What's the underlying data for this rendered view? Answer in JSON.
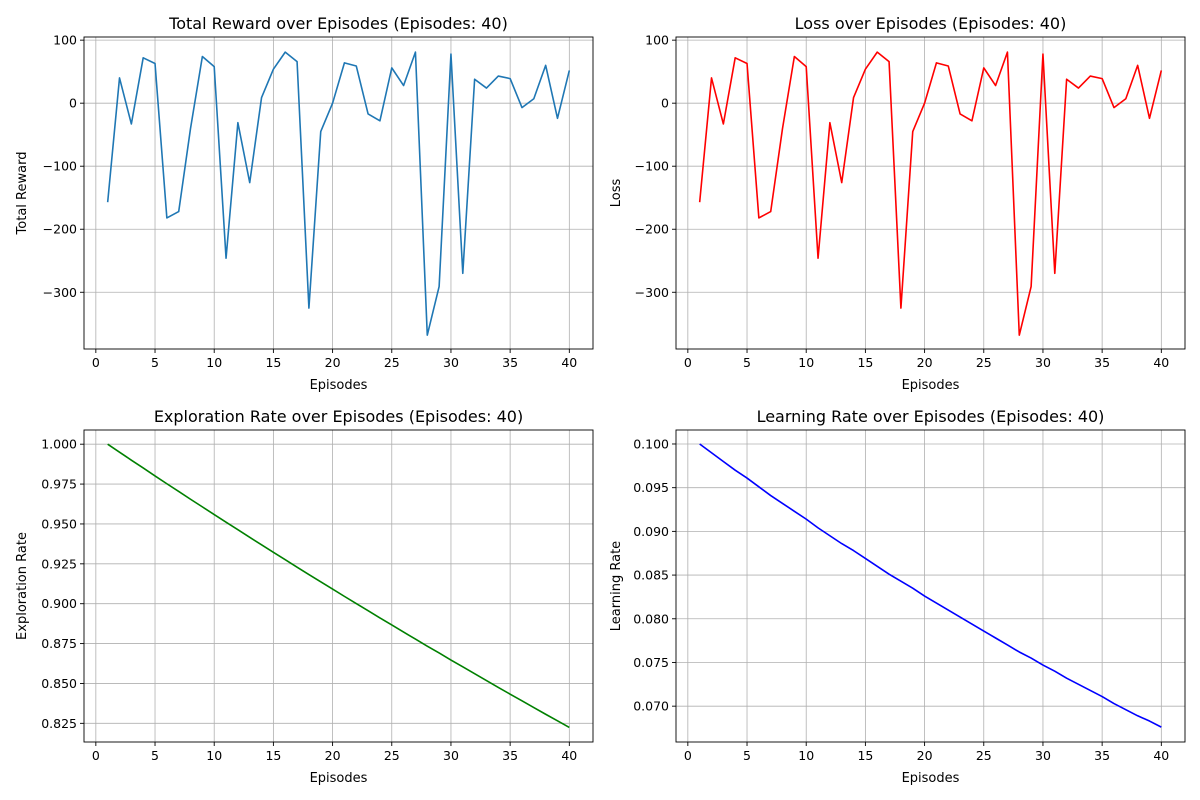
{
  "chart_data": [
    {
      "type": "line",
      "title": "Total Reward over Episodes (Episodes: 40)",
      "xlabel": "Episodes",
      "ylabel": "Total Reward",
      "color": "#1f77b4",
      "grid": true,
      "xlim": [
        -1,
        42
      ],
      "ylim": [
        -390,
        105
      ],
      "xticks": [
        0,
        5,
        10,
        15,
        20,
        25,
        30,
        35,
        40
      ],
      "xtick_labels": [
        "0",
        "5",
        "10",
        "15",
        "20",
        "25",
        "30",
        "35",
        "40"
      ],
      "yticks": [
        -300,
        -200,
        -100,
        0,
        100
      ],
      "ytick_labels": [
        "−300",
        "−200",
        "−100",
        "0",
        "100"
      ],
      "x": [
        1,
        2,
        3,
        4,
        5,
        6,
        7,
        8,
        9,
        10,
        11,
        12,
        13,
        14,
        15,
        16,
        17,
        18,
        19,
        20,
        21,
        22,
        23,
        24,
        25,
        26,
        27,
        28,
        29,
        30,
        31,
        32,
        33,
        34,
        35,
        36,
        37,
        38,
        39,
        40
      ],
      "y": [
        -157,
        40,
        -33,
        72,
        63,
        -182,
        -172,
        -40,
        74,
        58,
        -246,
        -31,
        -126,
        9,
        54,
        81,
        66,
        -325,
        -45,
        0,
        64,
        59,
        -17,
        -28,
        56,
        28,
        81,
        -368,
        -291,
        78,
        -270,
        38,
        24,
        43,
        39,
        -7,
        7,
        60,
        -24,
        52
      ]
    },
    {
      "type": "line",
      "title": "Loss over Episodes (Episodes: 40)",
      "xlabel": "Episodes",
      "ylabel": "Loss",
      "color": "#ff0000",
      "grid": true,
      "xlim": [
        -1,
        42
      ],
      "ylim": [
        -390,
        105
      ],
      "xticks": [
        0,
        5,
        10,
        15,
        20,
        25,
        30,
        35,
        40
      ],
      "xtick_labels": [
        "0",
        "5",
        "10",
        "15",
        "20",
        "25",
        "30",
        "35",
        "40"
      ],
      "yticks": [
        -300,
        -200,
        -100,
        0,
        100
      ],
      "ytick_labels": [
        "−300",
        "−200",
        "−100",
        "0",
        "100"
      ],
      "x": [
        1,
        2,
        3,
        4,
        5,
        6,
        7,
        8,
        9,
        10,
        11,
        12,
        13,
        14,
        15,
        16,
        17,
        18,
        19,
        20,
        21,
        22,
        23,
        24,
        25,
        26,
        27,
        28,
        29,
        30,
        31,
        32,
        33,
        34,
        35,
        36,
        37,
        38,
        39,
        40
      ],
      "y": [
        -157,
        40,
        -33,
        72,
        63,
        -182,
        -172,
        -40,
        74,
        58,
        -246,
        -31,
        -126,
        9,
        54,
        81,
        66,
        -325,
        -45,
        0,
        64,
        59,
        -17,
        -28,
        56,
        28,
        81,
        -368,
        -291,
        78,
        -270,
        38,
        24,
        43,
        39,
        -7,
        7,
        60,
        -24,
        52
      ]
    },
    {
      "type": "line",
      "title": "Exploration Rate over Episodes (Episodes: 40)",
      "xlabel": "Episodes",
      "ylabel": "Exploration Rate",
      "color": "#008000",
      "grid": true,
      "xlim": [
        -1,
        42
      ],
      "ylim": [
        0.8133,
        1.0089
      ],
      "xticks": [
        0,
        5,
        10,
        15,
        20,
        25,
        30,
        35,
        40
      ],
      "xtick_labels": [
        "0",
        "5",
        "10",
        "15",
        "20",
        "25",
        "30",
        "35",
        "40"
      ],
      "yticks": [
        0.825,
        0.85,
        0.875,
        0.9,
        0.925,
        0.95,
        0.975,
        1.0
      ],
      "ytick_labels": [
        "0.825",
        "0.850",
        "0.875",
        "0.900",
        "0.925",
        "0.950",
        "0.975",
        "1.000"
      ],
      "x": [
        1,
        2,
        3,
        4,
        5,
        6,
        7,
        8,
        9,
        10,
        11,
        12,
        13,
        14,
        15,
        16,
        17,
        18,
        19,
        20,
        21,
        22,
        23,
        24,
        25,
        26,
        27,
        28,
        29,
        30,
        31,
        32,
        33,
        34,
        35,
        36,
        37,
        38,
        39,
        40
      ],
      "y": [
        1.0,
        0.995,
        0.99,
        0.9851,
        0.9801,
        0.9752,
        0.9704,
        0.9655,
        0.9607,
        0.9559,
        0.9511,
        0.9464,
        0.9416,
        0.9369,
        0.9322,
        0.9276,
        0.9229,
        0.9183,
        0.9137,
        0.9092,
        0.9046,
        0.9001,
        0.8956,
        0.8911,
        0.8867,
        0.8822,
        0.8778,
        0.8734,
        0.8691,
        0.8647,
        0.8604,
        0.8561,
        0.8518,
        0.8475,
        0.8433,
        0.8391,
        0.8349,
        0.8307,
        0.8266,
        0.8224
      ]
    },
    {
      "type": "line",
      "title": "Learning Rate over Episodes (Episodes: 40)",
      "xlabel": "Episodes",
      "ylabel": "Learning Rate",
      "color": "#0000ff",
      "grid": true,
      "xlim": [
        -1,
        42
      ],
      "ylim": [
        0.0659,
        0.1016
      ],
      "xticks": [
        0,
        5,
        10,
        15,
        20,
        25,
        30,
        35,
        40
      ],
      "xtick_labels": [
        "0",
        "5",
        "10",
        "15",
        "20",
        "25",
        "30",
        "35",
        "40"
      ],
      "yticks": [
        0.07,
        0.075,
        0.08,
        0.085,
        0.09,
        0.095,
        0.1
      ],
      "ytick_labels": [
        "0.070",
        "0.075",
        "0.080",
        "0.085",
        "0.090",
        "0.095",
        "0.100"
      ],
      "x": [
        1,
        2,
        3,
        4,
        5,
        6,
        7,
        8,
        9,
        10,
        11,
        12,
        13,
        14,
        15,
        16,
        17,
        18,
        19,
        20,
        21,
        22,
        23,
        24,
        25,
        26,
        27,
        28,
        29,
        30,
        31,
        32,
        33,
        34,
        35,
        36,
        37,
        38,
        39,
        40
      ],
      "y": [
        0.1,
        0.099,
        0.098,
        0.097,
        0.0961,
        0.0951,
        0.0941,
        0.0932,
        0.0923,
        0.0914,
        0.0904,
        0.0895,
        0.0886,
        0.0878,
        0.0869,
        0.086,
        0.0851,
        0.0843,
        0.0835,
        0.0826,
        0.0818,
        0.081,
        0.0802,
        0.0794,
        0.0786,
        0.0778,
        0.077,
        0.0762,
        0.0755,
        0.0747,
        0.074,
        0.0732,
        0.0725,
        0.0718,
        0.0711,
        0.0703,
        0.0696,
        0.0689,
        0.0683,
        0.0676
      ]
    }
  ]
}
